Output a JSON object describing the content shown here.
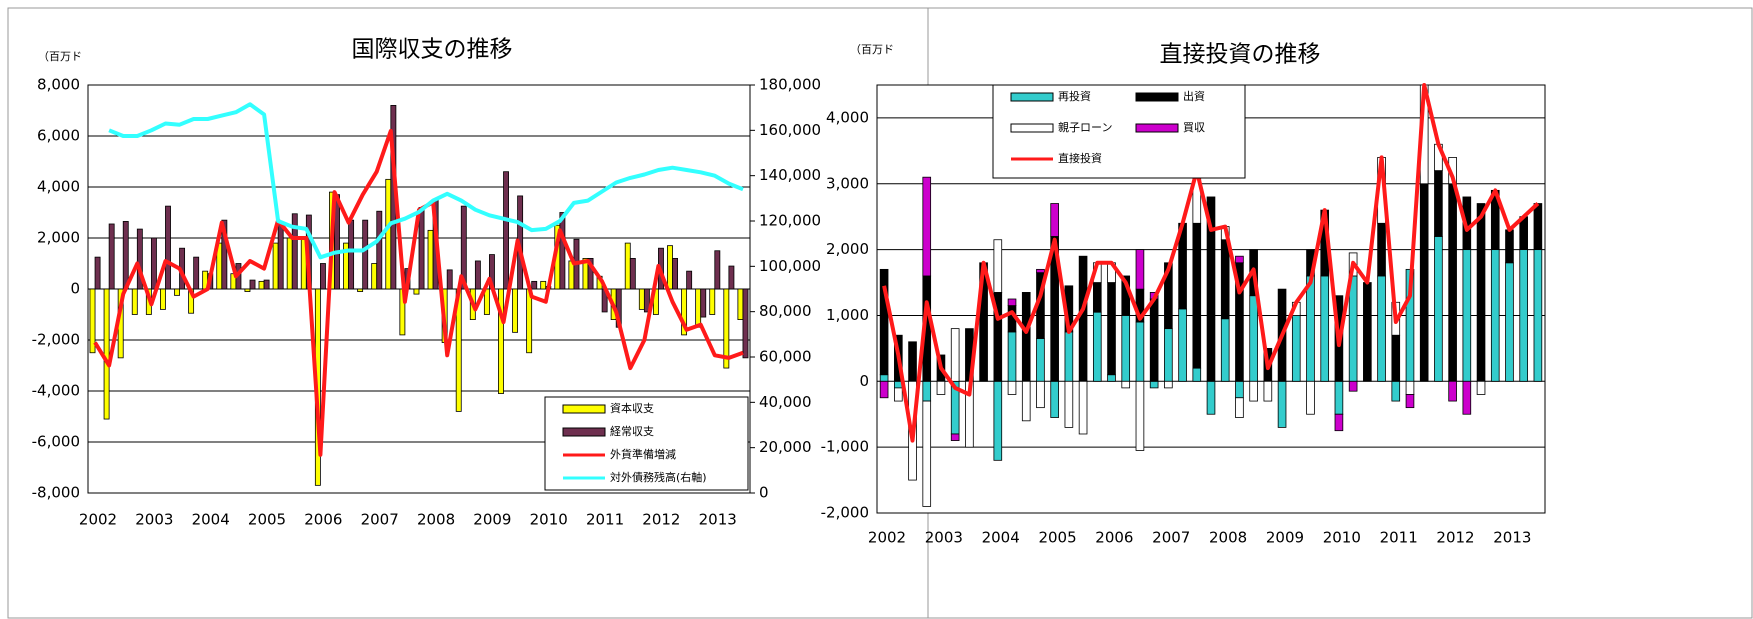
{
  "chart_data": [
    {
      "type": "combo",
      "title": "国際収支の推移",
      "y_label": "（百万ド",
      "grid": true,
      "stacked": false,
      "legend": "lower right",
      "categories": [
        "2002",
        null,
        null,
        null,
        "2003",
        null,
        null,
        null,
        "2004",
        null,
        null,
        null,
        "2005",
        null,
        null,
        null,
        "2006",
        null,
        null,
        null,
        "2007",
        null,
        null,
        null,
        "2008",
        null,
        null,
        null,
        "2009",
        null,
        null,
        null,
        "2010",
        null,
        null,
        null,
        "2011",
        null,
        null,
        null,
        "2012",
        null,
        null,
        null,
        "2013",
        null,
        null
      ],
      "ylim": [
        -8000,
        8000
      ],
      "yticks": [
        {
          "value": -8000,
          "label": "-8,000"
        },
        {
          "value": -6000,
          "label": "-6,000"
        },
        {
          "value": -4000,
          "label": "-4,000"
        },
        {
          "value": -2000,
          "label": "-2,000"
        },
        0,
        {
          "value": 2000,
          "label": "2,000"
        },
        {
          "value": 4000,
          "label": "4,000"
        },
        {
          "value": 6000,
          "label": "6,000"
        },
        {
          "value": 8000,
          "label": "8,000"
        }
      ],
      "y2lim": [
        0,
        180000
      ],
      "y2ticks": [
        0,
        {
          "value": 20000,
          "label": "20,000"
        },
        {
          "value": 40000,
          "label": "40,000"
        },
        {
          "value": 60000,
          "label": "60,000"
        },
        {
          "value": 80000,
          "label": "80,000"
        },
        {
          "value": 100000,
          "label": "100,000"
        },
        {
          "value": 120000,
          "label": "120,000"
        },
        {
          "value": 140000,
          "label": "140,000"
        },
        {
          "value": 160000,
          "label": "160,000"
        },
        {
          "value": 180000,
          "label": "180,000"
        }
      ],
      "series": [
        {
          "name": "資本収支",
          "type": "bar",
          "color": "#ffff00",
          "values": [
            -2500,
            -5100,
            -2700,
            -1000,
            -1000,
            -800,
            -250,
            -950,
            700,
            1800,
            600,
            -100,
            300,
            1800,
            2000,
            2000,
            -7700,
            3800,
            1800,
            -100,
            1000,
            4300,
            -1800,
            -200,
            2300,
            -2100,
            -4800,
            -1200,
            -1000,
            -4100,
            -1700,
            -2500,
            300,
            2500,
            1100,
            1200,
            500,
            -1200,
            1800,
            -800,
            -1000,
            1700,
            -1800,
            -1500,
            -1000,
            -3100,
            -1200
          ]
        },
        {
          "name": "経常収支",
          "type": "bar",
          "color": "#6e2f4f",
          "values": [
            1250,
            2550,
            2650,
            2350,
            2000,
            3250,
            1600,
            1250,
            600,
            2700,
            1000,
            350,
            350,
            2600,
            2950,
            2900,
            1000,
            3700,
            2700,
            2700,
            3050,
            7200,
            800,
            3200,
            3500,
            750,
            3250,
            1100,
            1350,
            4600,
            3650,
            300,
            100,
            3000,
            1950,
            1200,
            -900,
            -1500,
            1200,
            -900,
            1600,
            1200,
            700,
            -1100,
            1500,
            900,
            -2700
          ]
        },
        {
          "name": "外貨準備増減",
          "type": "line",
          "color": "#ff1a1a",
          "values": [
            -2100,
            -3000,
            -200,
            1000,
            -600,
            1100,
            800,
            -300,
            0,
            2600,
            500,
            1100,
            800,
            2700,
            2000,
            2000,
            -6500,
            3800,
            2600,
            3700,
            4600,
            6200,
            -500,
            3100,
            3400,
            -2600,
            500,
            -800,
            400,
            -1300,
            1900,
            -300,
            -500,
            2300,
            1000,
            1100,
            300,
            -900,
            -3100,
            -2000,
            900,
            -500,
            -1600,
            -1400,
            -2600,
            -2700,
            -2500
          ]
        },
        {
          "name": "対外債務残高(右軸)",
          "type": "line",
          "axis": "y2",
          "color": "#33ffff",
          "values": [
            null,
            160000,
            157500,
            157500,
            160000,
            163000,
            162500,
            165000,
            165000,
            166500,
            168000,
            171500,
            167000,
            120000,
            117500,
            116500,
            104000,
            106000,
            107000,
            107000,
            111000,
            119000,
            121000,
            124000,
            129000,
            132000,
            129000,
            125000,
            122500,
            121000,
            119500,
            116000,
            116500,
            120000,
            128000,
            129000,
            133000,
            137000,
            139000,
            140500,
            142500,
            143500,
            142500,
            141500,
            140000,
            136500,
            134000
          ]
        }
      ]
    },
    {
      "type": "stacked_bar",
      "title": "直接投資の推移",
      "y_label": "（百万ド",
      "grid": true,
      "stacked": true,
      "legend": "upper left",
      "categories": [
        "2002",
        null,
        null,
        null,
        "2003",
        null,
        null,
        null,
        "2004",
        null,
        null,
        null,
        "2005",
        null,
        null,
        null,
        "2006",
        null,
        null,
        null,
        "2007",
        null,
        null,
        null,
        "2008",
        null,
        null,
        null,
        "2009",
        null,
        null,
        null,
        "2010",
        null,
        null,
        null,
        "2011",
        null,
        null,
        null,
        "2012",
        null,
        null,
        null,
        "2013",
        null,
        null
      ],
      "ylim": [
        -2000,
        4500
      ],
      "yticks": [
        {
          "value": -2000,
          "label": "-2,000"
        },
        {
          "value": -1000,
          "label": "-1,000"
        },
        0,
        {
          "value": 1000,
          "label": "1,000"
        },
        {
          "value": 2000,
          "label": "2,000"
        },
        {
          "value": 3000,
          "label": "3,000"
        },
        {
          "value": 4000,
          "label": "4,000"
        }
      ],
      "series": [
        {
          "name": "再投資",
          "type": "bar",
          "color": "#33cccc",
          "values": [
            100,
            -100,
            0,
            -300,
            0,
            -800,
            0,
            0,
            -1200,
            750,
            0,
            650,
            -550,
            750,
            0,
            1050,
            100,
            1000,
            900,
            -100,
            800,
            1100,
            200,
            -500,
            950,
            -250,
            1300,
            0,
            -700,
            1000,
            1600,
            1600,
            -500,
            1600,
            0,
            1600,
            -300,
            1700,
            0,
            2200,
            0,
            2000,
            0,
            2000,
            1800,
            2000,
            2000
          ]
        },
        {
          "name": "出資",
          "type": "bar",
          "color": "#000000",
          "values": [
            1600,
            700,
            600,
            1600,
            400,
            0,
            800,
            1800,
            1350,
            400,
            1350,
            1000,
            2200,
            700,
            1900,
            450,
            1400,
            600,
            500,
            1250,
            1000,
            1300,
            2200,
            2800,
            1200,
            1800,
            700,
            500,
            1400,
            0,
            400,
            1000,
            1300,
            0,
            1500,
            800,
            700,
            0,
            3000,
            1000,
            3000,
            800,
            2700,
            900,
            500,
            500,
            700
          ]
        },
        {
          "name": "親子ローン",
          "type": "bar",
          "color": "#ffffff",
          "values": [
            0,
            -200,
            -1500,
            -1600,
            -200,
            800,
            -1000,
            0,
            800,
            -200,
            -600,
            -400,
            0,
            -700,
            -800,
            300,
            300,
            -100,
            -1050,
            0,
            -100,
            0,
            700,
            0,
            200,
            -300,
            -300,
            -300,
            0,
            200,
            -500,
            0,
            0,
            350,
            0,
            1000,
            500,
            -200,
            1500,
            400,
            400,
            0,
            -200,
            0,
            0,
            0,
            0
          ]
        },
        {
          "name": "買収",
          "type": "bar",
          "color": "#cc00cc",
          "values": [
            -250,
            0,
            0,
            1500,
            0,
            -100,
            0,
            0,
            0,
            100,
            0,
            50,
            500,
            0,
            0,
            0,
            0,
            0,
            600,
            100,
            0,
            0,
            100,
            0,
            0,
            100,
            0,
            0,
            0,
            0,
            0,
            0,
            -250,
            -150,
            0,
            0,
            0,
            -200,
            0,
            0,
            -300,
            -500,
            0,
            0,
            0,
            0,
            0
          ]
        },
        {
          "name": "直接投資",
          "type": "line",
          "color": "#ff1a1a",
          "values": [
            1450,
            400,
            -900,
            1200,
            200,
            -100,
            -200,
            1800,
            950,
            1050,
            750,
            1300,
            2150,
            750,
            1100,
            1800,
            1800,
            1500,
            950,
            1250,
            1700,
            2400,
            3200,
            2300,
            2350,
            1350,
            1700,
            200,
            700,
            1200,
            1500,
            2600,
            550,
            1800,
            1500,
            3400,
            900,
            1300,
            4500,
            3600,
            3100,
            2300,
            2500,
            2900,
            2300,
            2500,
            2700
          ]
        }
      ]
    }
  ]
}
